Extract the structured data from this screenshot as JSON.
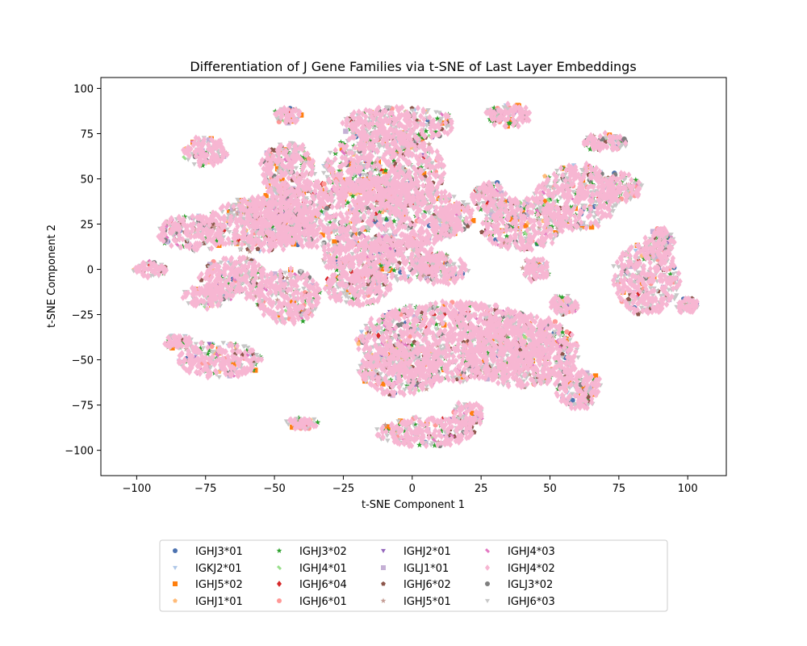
{
  "chart_data": {
    "type": "scatter",
    "title": "Differentiation of J Gene Families via t-SNE of Last Layer Embeddings",
    "xlabel": "t-SNE Component 1",
    "ylabel": "t-SNE Component 2",
    "xlim": [
      -113,
      114
    ],
    "ylim": [
      -114,
      106
    ],
    "xticks": [
      -100,
      -75,
      -50,
      -25,
      0,
      25,
      50,
      75,
      100
    ],
    "yticks": [
      -100,
      -75,
      -50,
      -25,
      0,
      25,
      50,
      75,
      100
    ],
    "grid": false,
    "legend_position": "bottom-center",
    "legend_columns": 5,
    "series": [
      {
        "name": "IGHJ3*01",
        "color": "#4c72b0",
        "marker": "circle"
      },
      {
        "name": "IGKJ2*01",
        "color": "#aec7e8",
        "marker": "triangle-down"
      },
      {
        "name": "IGHJ5*02",
        "color": "#ff7f0e",
        "marker": "square"
      },
      {
        "name": "IGHJ1*01",
        "color": "#ffbb78",
        "marker": "pentagon"
      },
      {
        "name": "IGHJ3*02",
        "color": "#2ca02c",
        "marker": "star"
      },
      {
        "name": "IGHJ4*01",
        "color": "#98df8a",
        "marker": "x"
      },
      {
        "name": "IGHJ6*04",
        "color": "#d62728",
        "marker": "diamond"
      },
      {
        "name": "IGHJ6*01",
        "color": "#ff9896",
        "marker": "circle"
      },
      {
        "name": "IGHJ2*01",
        "color": "#9467bd",
        "marker": "triangle-down"
      },
      {
        "name": "IGLJ1*01",
        "color": "#c5b0d5",
        "marker": "square"
      },
      {
        "name": "IGHJ6*02",
        "color": "#8c564b",
        "marker": "pentagon"
      },
      {
        "name": "IGHJ5*01",
        "color": "#c49c94",
        "marker": "star"
      },
      {
        "name": "IGHJ4*03",
        "color": "#e377c2",
        "marker": "x"
      },
      {
        "name": "IGHJ4*02",
        "color": "#f7b6d2",
        "marker": "diamond"
      },
      {
        "name": "IGLJ3*02",
        "color": "#7f7f7f",
        "marker": "circle"
      },
      {
        "name": "IGHJ6*03",
        "color": "#c7c7c7",
        "marker": "triangle-down"
      }
    ],
    "clusters": [
      {
        "x": -20,
        "y": 30,
        "rx": 42,
        "ry": 20
      },
      {
        "x": -10,
        "y": 55,
        "rx": 22,
        "ry": 22
      },
      {
        "x": -55,
        "y": 25,
        "rx": 20,
        "ry": 15
      },
      {
        "x": -80,
        "y": 20,
        "rx": 12,
        "ry": 10
      },
      {
        "x": -45,
        "y": 55,
        "rx": 10,
        "ry": 15
      },
      {
        "x": -5,
        "y": 80,
        "rx": 20,
        "ry": 10
      },
      {
        "x": -10,
        "y": 5,
        "rx": 22,
        "ry": 12
      },
      {
        "x": -45,
        "y": -15,
        "rx": 12,
        "ry": 15
      },
      {
        "x": -20,
        "y": -10,
        "rx": 12,
        "ry": 10
      },
      {
        "x": -65,
        "y": -5,
        "rx": 12,
        "ry": 12
      },
      {
        "x": -75,
        "y": -15,
        "rx": 8,
        "ry": 6
      },
      {
        "x": 15,
        "y": -40,
        "rx": 35,
        "ry": 22
      },
      {
        "x": -5,
        "y": -55,
        "rx": 15,
        "ry": 15
      },
      {
        "x": 40,
        "y": -45,
        "rx": 20,
        "ry": 20
      },
      {
        "x": 60,
        "y": -65,
        "rx": 8,
        "ry": 12
      },
      {
        "x": 5,
        "y": -90,
        "rx": 18,
        "ry": 8
      },
      {
        "x": -40,
        "y": -85,
        "rx": 6,
        "ry": 3
      },
      {
        "x": -70,
        "y": -50,
        "rx": 15,
        "ry": 10
      },
      {
        "x": -85,
        "y": -40,
        "rx": 5,
        "ry": 4
      },
      {
        "x": 40,
        "y": 25,
        "rx": 15,
        "ry": 15
      },
      {
        "x": 60,
        "y": 40,
        "rx": 15,
        "ry": 18
      },
      {
        "x": 75,
        "y": 45,
        "rx": 8,
        "ry": 8
      },
      {
        "x": 35,
        "y": 85,
        "rx": 8,
        "ry": 6
      },
      {
        "x": 70,
        "y": 70,
        "rx": 8,
        "ry": 5
      },
      {
        "x": 85,
        "y": -5,
        "rx": 12,
        "ry": 20
      },
      {
        "x": 90,
        "y": 15,
        "rx": 5,
        "ry": 8
      },
      {
        "x": 100,
        "y": -20,
        "rx": 4,
        "ry": 4
      },
      {
        "x": -95,
        "y": 0,
        "rx": 6,
        "ry": 4
      },
      {
        "x": -75,
        "y": 65,
        "rx": 8,
        "ry": 8
      },
      {
        "x": -45,
        "y": 85,
        "rx": 5,
        "ry": 4
      },
      {
        "x": 10,
        "y": 0,
        "rx": 10,
        "ry": 8
      },
      {
        "x": 12,
        "y": 25,
        "rx": 5,
        "ry": 8
      },
      {
        "x": 28,
        "y": 40,
        "rx": 6,
        "ry": 8
      },
      {
        "x": 45,
        "y": 0,
        "rx": 5,
        "ry": 6
      },
      {
        "x": 55,
        "y": -20,
        "rx": 5,
        "ry": 5
      },
      {
        "x": 20,
        "y": -80,
        "rx": 6,
        "ry": 6
      }
    ]
  }
}
